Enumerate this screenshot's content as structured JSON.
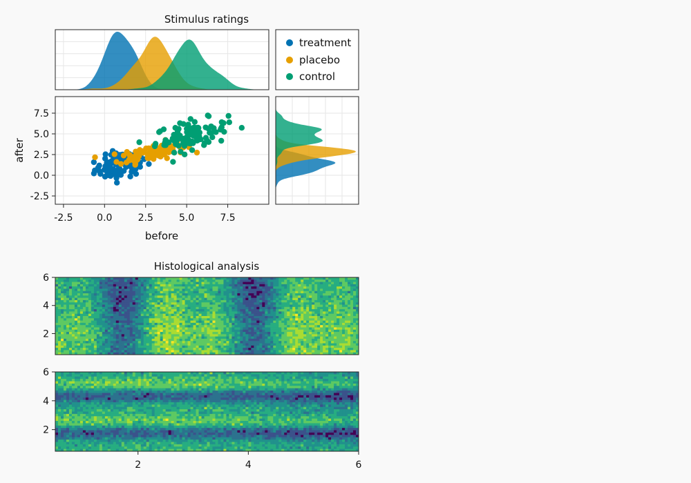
{
  "colors": {
    "treatment": "#0072b2",
    "placebo": "#e69f00",
    "control": "#009e73",
    "background": "#f9f9f9",
    "grid": "#e6e6e6",
    "viridis": [
      "#440154",
      "#3b528b",
      "#2c728e",
      "#21918c",
      "#27ad81",
      "#5ec962",
      "#aadc32",
      "#fde725"
    ]
  },
  "chart_data": [
    {
      "type": "scatter",
      "title": "Stimulus ratings",
      "xlabel": "before",
      "ylabel": "after",
      "xticks": [
        "-2.5",
        "0.0",
        "2.5",
        "5.0",
        "7.5"
      ],
      "yticks": [
        "-2.5",
        "0.0",
        "2.5",
        "5.0",
        "7.5"
      ],
      "xlim": [
        -3,
        10
      ],
      "ylim": [
        -3.5,
        9.5
      ],
      "grid": true,
      "legend_position": "top-right",
      "series": [
        {
          "name": "treatment",
          "n_points": 100,
          "x_mean": 1.0,
          "x_sd": 0.8,
          "y_mean": 1.2,
          "y_sd": 0.9
        },
        {
          "name": "placebo",
          "n_points": 100,
          "x_mean": 2.9,
          "x_sd": 1.0,
          "y_mean": 2.8,
          "y_sd": 0.6
        },
        {
          "name": "control",
          "n_points": 100,
          "x_mean": 5.3,
          "x_sd": 1.1,
          "y_mean": 4.9,
          "y_sd": 1.0
        }
      ],
      "marginal_densities": "kernel density of 'before' (top) and 'after' (right) per series"
    },
    {
      "type": "heatmap",
      "title": "Histological analysis",
      "style": "filled contour",
      "panels": [
        {
          "name": "top",
          "xlim": [
            0.5,
            6.0
          ],
          "ylim": [
            0.5,
            6.0
          ],
          "yticks": [
            "2",
            "4",
            "6"
          ],
          "pattern": "varies mainly along x",
          "levels": 8
        },
        {
          "name": "bottom",
          "xlim": [
            0.5,
            6.0
          ],
          "ylim": [
            0.5,
            6.0
          ],
          "yticks": [
            "2",
            "4",
            "6"
          ],
          "xticks": [
            "2",
            "4",
            "6"
          ],
          "pattern": "varies mainly along y",
          "levels": 8
        }
      ]
    }
  ]
}
